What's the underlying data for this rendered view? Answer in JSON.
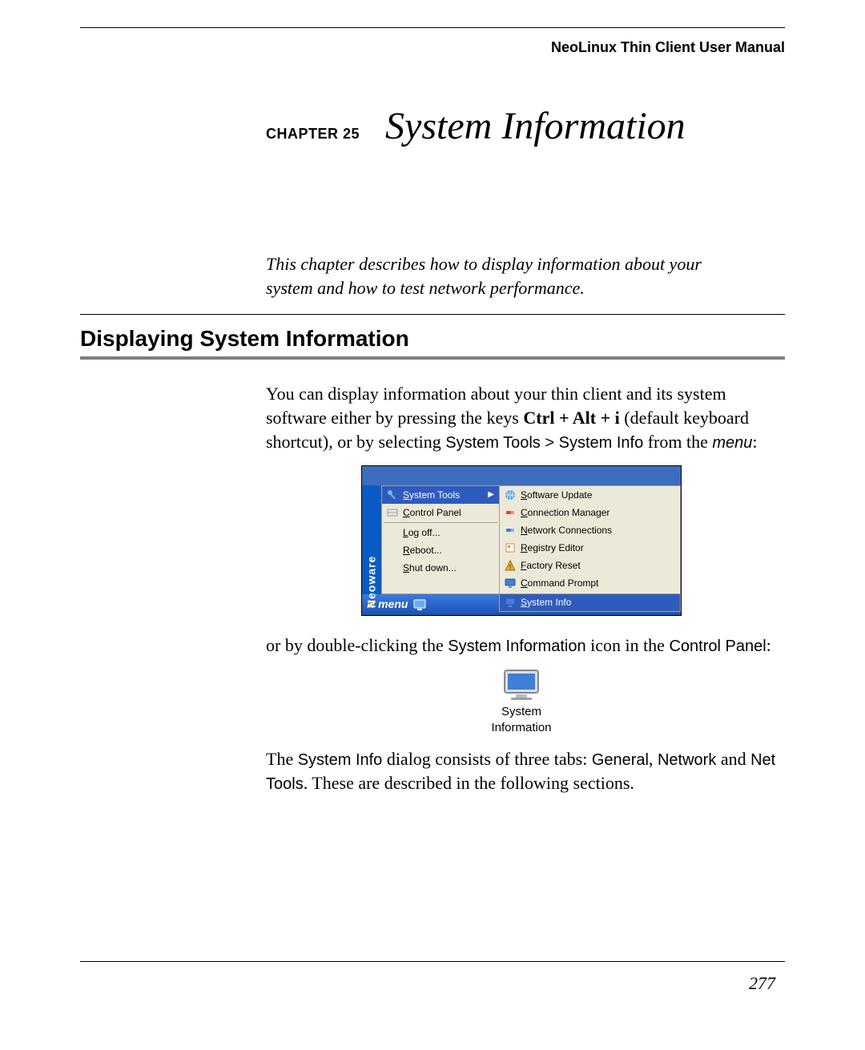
{
  "header": {
    "doc_title": "NeoLinux Thin Client User Manual"
  },
  "chapter": {
    "label": "CHAPTER 25",
    "title": "System Information"
  },
  "intro": "This chapter describes how to display information about your system and how to test network performance.",
  "section": {
    "heading": "Displaying System Information"
  },
  "para1": {
    "pre": "You can display information about your thin client and its system software either by pressing the keys ",
    "keys": "Ctrl + Alt + i",
    "mid1": " (default keyboard shortcut), or by selecting ",
    "path1": "System Tools",
    "gt": " > ",
    "path2": "System Info",
    "mid2": " from the ",
    "menu_word": "menu",
    "end": ":"
  },
  "menu_ss": {
    "brand": "Neoware",
    "taskbar_label": "menu",
    "left_items": [
      {
        "pre": "",
        "u": "S",
        "rest": "ystem Tools",
        "hl": true,
        "arrow": true,
        "icon": "tools"
      },
      {
        "pre": "",
        "u": "C",
        "rest": "ontrol Panel",
        "hl": false,
        "arrow": false,
        "icon": "cpanel"
      },
      {
        "sep": true
      },
      {
        "pre": "",
        "u": "L",
        "rest": "og off...",
        "hl": false,
        "arrow": false,
        "icon": "none"
      },
      {
        "pre": "",
        "u": "R",
        "rest": "eboot...",
        "hl": false,
        "arrow": false,
        "icon": "none"
      },
      {
        "pre": "",
        "u": "S",
        "rest": "hut down...",
        "hl": false,
        "arrow": false,
        "icon": "none"
      }
    ],
    "right_items": [
      {
        "pre": "",
        "u": "S",
        "rest": "oftware Update",
        "hl": false,
        "icon": "globe"
      },
      {
        "pre": "",
        "u": "C",
        "rest": "onnection Manager",
        "hl": false,
        "icon": "plug-red"
      },
      {
        "pre": "",
        "u": "N",
        "rest": "etwork Connections",
        "hl": false,
        "icon": "plug-blue"
      },
      {
        "pre": "",
        "u": "R",
        "rest": "egistry Editor",
        "hl": false,
        "icon": "registry"
      },
      {
        "pre": "",
        "u": "F",
        "rest": "actory Reset",
        "hl": false,
        "icon": "warning"
      },
      {
        "pre": "",
        "u": "C",
        "rest": "ommand Prompt",
        "hl": false,
        "icon": "monitor"
      }
    ],
    "right_extra": {
      "pre": "",
      "u": "S",
      "rest": "ystem Info",
      "hl": true,
      "icon": "monitor"
    },
    "colors": {
      "desktop": "#3d6dbf",
      "brandbar": "#0a5cc4",
      "panel": "#ece9d8",
      "highlight": "#2f5bbf",
      "taskbar_top": "#3b79e0",
      "taskbar_bottom": "#1a52b5",
      "menu_n": "#efc23a"
    }
  },
  "para2": {
    "pre": "or by double-clicking the ",
    "sans1": "System Information",
    "mid": " icon in the ",
    "sans2": "Control Panel",
    "end": ":"
  },
  "sysinfo_icon": {
    "line1": "System",
    "line2": "Information"
  },
  "para3": {
    "pre": "The ",
    "sans1": "System Info",
    "mid1": " dialog consists of three tabs: ",
    "sans2": "General",
    "comma": ", ",
    "sans3": "Network",
    "mid2": " and ",
    "sans4": "Net Tools",
    "post": ". These are described in the following sections."
  },
  "page_number": "277",
  "icon_svg": {
    "tools": {
      "fill": "#7ab8e6"
    },
    "cpanel": {
      "fill": "#9aa0a6"
    },
    "globe": {
      "fill": "#5aa5e6"
    },
    "plugred": {
      "fill": "#d94c3d"
    },
    "plugblue": {
      "fill": "#3d7fd9"
    },
    "registry": {
      "fill": "#d98c3d"
    },
    "warning": {
      "fill": "#e6b33d"
    },
    "monitor": {
      "fill": "#3d7fd9"
    }
  }
}
